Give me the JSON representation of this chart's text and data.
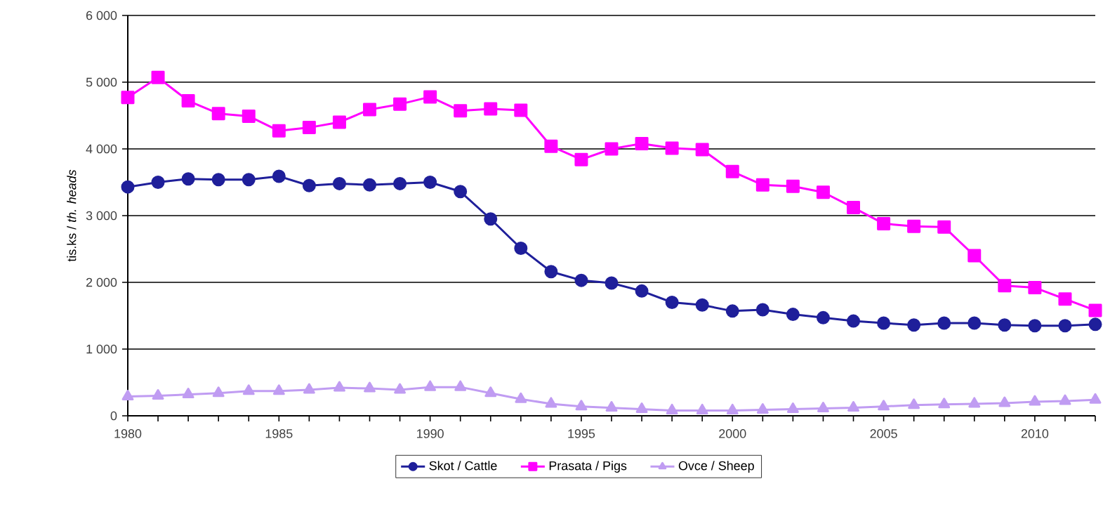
{
  "chart_data": {
    "type": "line",
    "ylabel": "tis.ks / *th. heads*",
    "x": [
      1980,
      1981,
      1982,
      1983,
      1984,
      1985,
      1986,
      1987,
      1988,
      1989,
      1990,
      1991,
      1992,
      1993,
      1994,
      1995,
      1996,
      1997,
      1998,
      1999,
      2000,
      2001,
      2002,
      2003,
      2004,
      2005,
      2006,
      2007,
      2008,
      2009,
      2010,
      2011,
      2012
    ],
    "xlim": [
      1980,
      2012
    ],
    "xticks": [
      1980,
      {
        "value": 1981,
        "label": null
      },
      {
        "value": 1982,
        "label": null
      },
      {
        "value": 1983,
        "label": null
      },
      {
        "value": 1984,
        "label": null
      },
      1985,
      {
        "value": 1986,
        "label": null
      },
      {
        "value": 1987,
        "label": null
      },
      {
        "value": 1988,
        "label": null
      },
      {
        "value": 1989,
        "label": null
      },
      1990,
      {
        "value": 1991,
        "label": null
      },
      {
        "value": 1992,
        "label": null
      },
      {
        "value": 1993,
        "label": null
      },
      {
        "value": 1994,
        "label": null
      },
      1995,
      {
        "value": 1996,
        "label": null
      },
      {
        "value": 1997,
        "label": null
      },
      {
        "value": 1998,
        "label": null
      },
      {
        "value": 1999,
        "label": null
      },
      2000,
      {
        "value": 2001,
        "label": null
      },
      {
        "value": 2002,
        "label": null
      },
      {
        "value": 2003,
        "label": null
      },
      {
        "value": 2004,
        "label": null
      },
      2005,
      {
        "value": 2006,
        "label": null
      },
      {
        "value": 2007,
        "label": null
      },
      {
        "value": 2008,
        "label": null
      },
      {
        "value": 2009,
        "label": null
      },
      2010,
      {
        "value": 2011,
        "label": null
      },
      {
        "value": 2012,
        "label": null
      }
    ],
    "ylim": [
      0,
      6000
    ],
    "yticks": [
      0,
      {
        "value": 1000,
        "label": "1 000"
      },
      {
        "value": 2000,
        "label": "2 000"
      },
      {
        "value": 3000,
        "label": "3 000"
      },
      {
        "value": 4000,
        "label": "4 000"
      },
      {
        "value": 5000,
        "label": "5 000"
      },
      {
        "value": 6000,
        "label": "6 000"
      }
    ],
    "grid": "y",
    "legend": "bottom",
    "line_style": "solid",
    "series": [
      {
        "name": "Skot / Cattle",
        "color": "#1f1f9a",
        "marker": "circle",
        "values": [
          3430,
          3500,
          3550,
          3540,
          3540,
          3590,
          3450,
          3480,
          3460,
          3480,
          3500,
          3360,
          2950,
          2510,
          2160,
          2030,
          1990,
          1870,
          1700,
          1660,
          1570,
          1590,
          1520,
          1470,
          1420,
          1390,
          1360,
          1390,
          1390,
          1360,
          1350,
          1350,
          1370
        ]
      },
      {
        "name": "Prasata / Pigs",
        "color": "#ff00ff",
        "marker": "square",
        "values": [
          4770,
          5070,
          4720,
          4530,
          4490,
          4270,
          4320,
          4400,
          4590,
          4670,
          4780,
          4570,
          4600,
          4580,
          4040,
          3840,
          4000,
          4080,
          4010,
          3990,
          3660,
          3460,
          3440,
          3350,
          3120,
          2880,
          2840,
          2830,
          2400,
          1950,
          1920,
          1750,
          1580
        ]
      },
      {
        "name": "Ovce / Sheep",
        "color": "#c09cf2",
        "marker": "triangle",
        "values": [
          290,
          300,
          320,
          340,
          370,
          370,
          390,
          420,
          410,
          390,
          430,
          430,
          340,
          250,
          180,
          140,
          120,
          100,
          80,
          80,
          80,
          90,
          100,
          110,
          120,
          140,
          160,
          170,
          180,
          190,
          210,
          220,
          240
        ]
      }
    ]
  }
}
